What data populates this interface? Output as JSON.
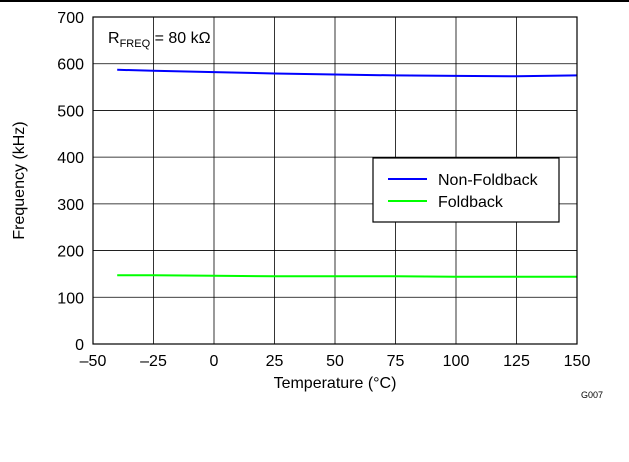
{
  "chart_data": {
    "type": "line",
    "xlabel": "Temperature (°C)",
    "ylabel": "Frequency (kHz)",
    "xlim": [
      -50,
      150
    ],
    "ylim": [
      0,
      700
    ],
    "xticks": [
      -50,
      -25,
      0,
      25,
      50,
      75,
      100,
      125,
      150
    ],
    "xtick_labels": [
      "–50",
      "–25",
      "0",
      "25",
      "50",
      "75",
      "100",
      "125",
      "150"
    ],
    "yticks": [
      0,
      100,
      200,
      300,
      400,
      500,
      600,
      700
    ],
    "grid": true,
    "legend_position": "right",
    "annotation": {
      "main": "R",
      "sub": "FREQ",
      "rest": " = 80 kΩ"
    },
    "figure_id": "G007",
    "series": [
      {
        "name": "Non-Foldback",
        "color": "#0000ff",
        "x": [
          -40,
          -25,
          0,
          25,
          50,
          75,
          100,
          125,
          150
        ],
        "y": [
          587,
          585,
          582,
          579,
          577,
          575,
          574,
          573,
          575
        ]
      },
      {
        "name": "Foldback",
        "color": "#00ff00",
        "x": [
          -40,
          -25,
          0,
          25,
          50,
          75,
          100,
          125,
          150
        ],
        "y": [
          147,
          147,
          146,
          145,
          145,
          145,
          144,
          144,
          144
        ]
      }
    ]
  }
}
